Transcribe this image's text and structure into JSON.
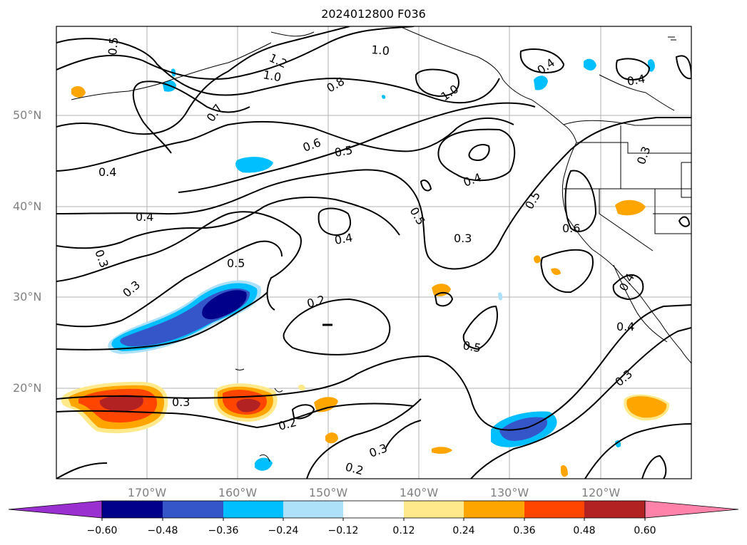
{
  "title": "2024012800 F036",
  "lat_labels": [
    "50°N",
    "40°N",
    "30°N",
    "20°N"
  ],
  "lon_labels": [
    "170°W",
    "160°W",
    "150°W",
    "140°W",
    "130°W",
    "120°W"
  ],
  "colorbar": {
    "ticks": [
      "−0.60",
      "−0.48",
      "−0.36",
      "−0.24",
      "−0.12",
      "0.12",
      "0.24",
      "0.36",
      "0.48",
      "0.60"
    ],
    "colors": [
      "#9b30d0",
      "#00008b",
      "#3456c8",
      "#00bfff",
      "#ade1fa",
      "#ffffff",
      "#ffe98a",
      "#ffa500",
      "#ff4500",
      "#b22222",
      "#ff82ab"
    ]
  },
  "contour_labels": [
    "0.5",
    "1.2",
    "1.0",
    "1.0",
    "0.8",
    "1.0",
    "0.4",
    "0.4",
    "0.7",
    "0.6",
    "0.5",
    "0.4",
    "0.4",
    "0.3",
    "0.5",
    "0.4",
    "0.5",
    "0.3",
    "0.4",
    "0.6",
    "0.3",
    "0.5",
    "0.3",
    "0.2",
    "0.4",
    "0.4",
    "0.5",
    "0.3",
    "0.3",
    "0.2",
    "0.3",
    "0.2",
    "0.4"
  ]
}
